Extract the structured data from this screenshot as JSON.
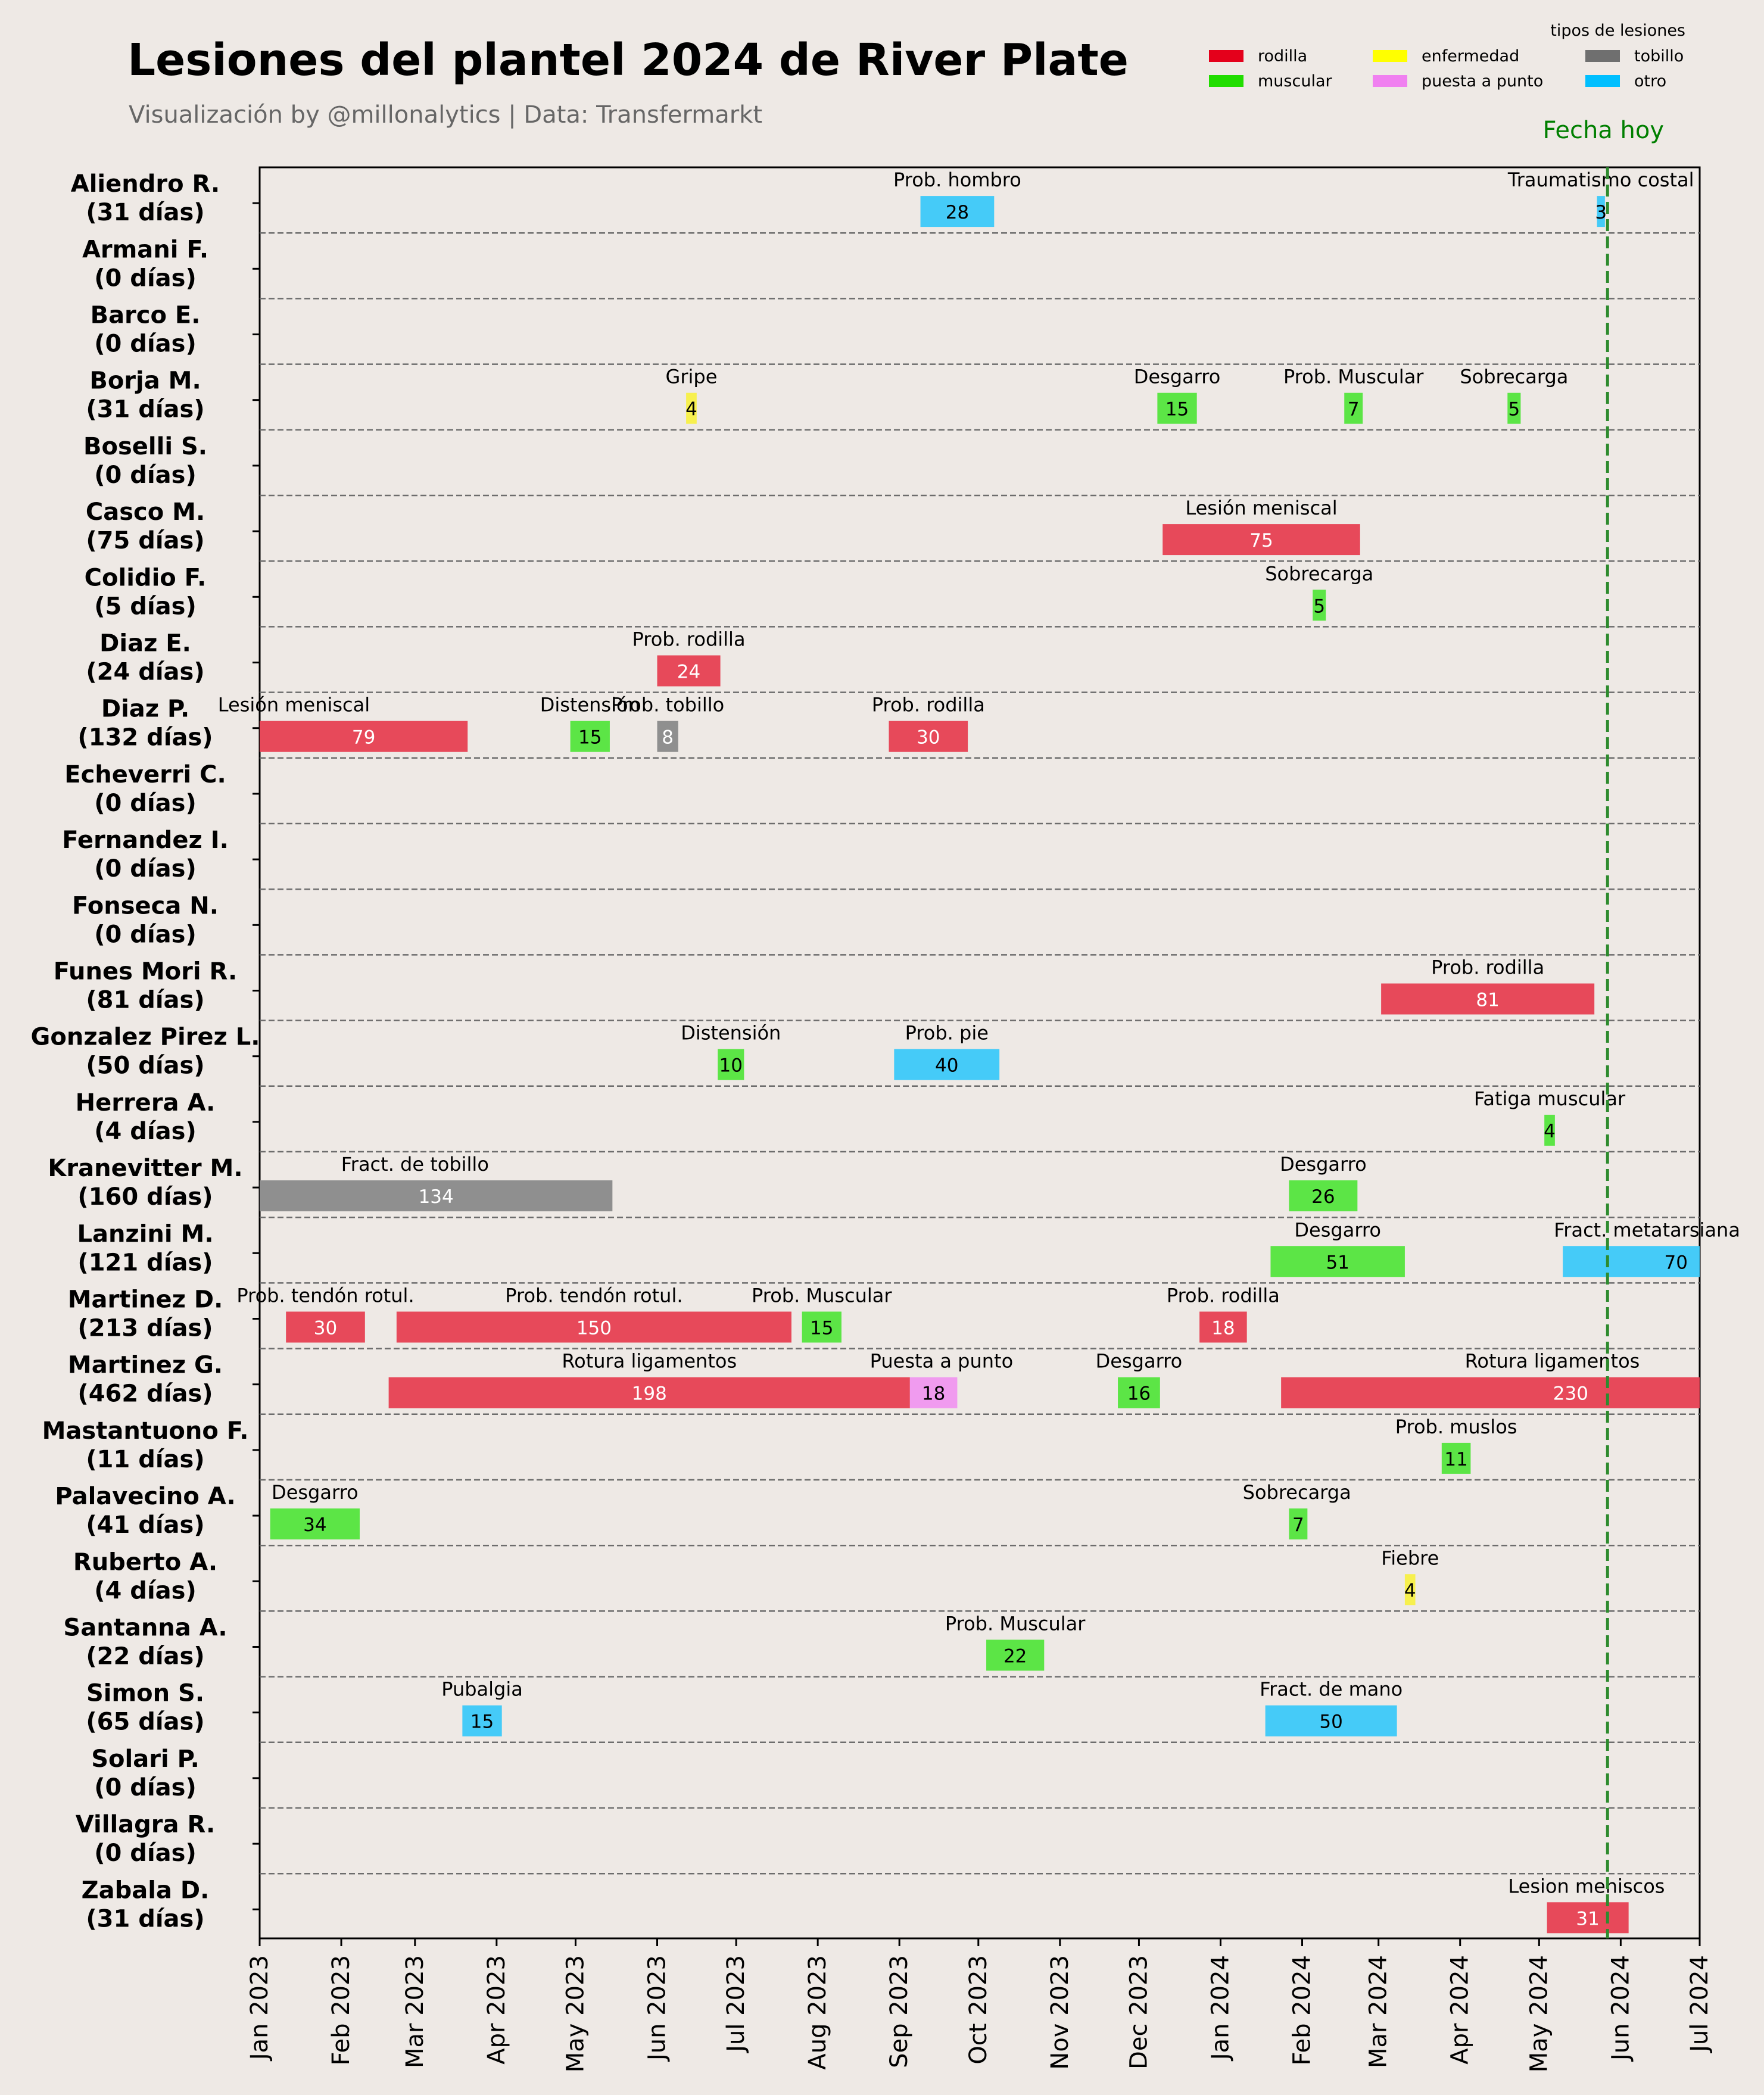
{
  "chart_data": {
    "type": "gantt",
    "title": "Lesiones del plantel 2024 de River Plate",
    "subtitle": "Visualización by @millonalytics | Data: Transfermarkt",
    "legend": {
      "title": "tipos de lesiones",
      "placement": "top-right",
      "items": [
        {
          "label": "rodilla",
          "color": "#E4001B"
        },
        {
          "label": "enfermedad",
          "color": "#FFFF00"
        },
        {
          "label": "tobillo",
          "color": "#6F6F6F"
        },
        {
          "label": "muscular",
          "color": "#21DD00"
        },
        {
          "label": "puesta a punto",
          "color": "#F080F0"
        },
        {
          "label": "otro",
          "color": "#00BFFF"
        }
      ]
    },
    "bar_colors": {
      "rodilla": "#E7495A",
      "enfermedad": "#F7F04E",
      "tobillo": "#8F8F8F",
      "muscular": "#5CE546",
      "puesta a punto": "#F09BEF",
      "otro": "#45CBF8"
    },
    "today_label": "Fecha hoy",
    "today_date": "2024-05-27",
    "xlim": [
      "2023-01-01",
      "2024-07-01"
    ],
    "x_ticks": [
      {
        "date": "2023-01-01",
        "label": "Jan 2023"
      },
      {
        "date": "2023-02-01",
        "label": "Feb 2023"
      },
      {
        "date": "2023-03-01",
        "label": "Mar 2023"
      },
      {
        "date": "2023-04-01",
        "label": "Apr 2023"
      },
      {
        "date": "2023-05-01",
        "label": "May 2023"
      },
      {
        "date": "2023-06-01",
        "label": "Jun 2023"
      },
      {
        "date": "2023-07-01",
        "label": "Jul 2023"
      },
      {
        "date": "2023-08-01",
        "label": "Aug 2023"
      },
      {
        "date": "2023-09-01",
        "label": "Sep 2023"
      },
      {
        "date": "2023-10-01",
        "label": "Oct 2023"
      },
      {
        "date": "2023-11-01",
        "label": "Nov 2023"
      },
      {
        "date": "2023-12-01",
        "label": "Dec 2023"
      },
      {
        "date": "2024-01-01",
        "label": "Jan 2024"
      },
      {
        "date": "2024-02-01",
        "label": "Feb 2024"
      },
      {
        "date": "2024-03-01",
        "label": "Mar 2024"
      },
      {
        "date": "2024-04-01",
        "label": "Apr 2024"
      },
      {
        "date": "2024-05-01",
        "label": "May 2024"
      },
      {
        "date": "2024-06-01",
        "label": "Jun 2024"
      },
      {
        "date": "2024-07-01",
        "label": "Jul 2024"
      }
    ],
    "players": [
      {
        "name": "Aliendro R.",
        "total": "(31 días)",
        "injuries": [
          {
            "start": "2023-09-09",
            "days": 28,
            "label": "Prob. hombro",
            "type": "otro"
          },
          {
            "start": "2024-05-23",
            "days": 3,
            "label": "Traumatismo costal",
            "type": "otro"
          }
        ]
      },
      {
        "name": "Armani F.",
        "total": "(0 días)",
        "injuries": []
      },
      {
        "name": "Barco E.",
        "total": "(0 días)",
        "injuries": []
      },
      {
        "name": "Borja M.",
        "total": "(31 días)",
        "injuries": [
          {
            "start": "2023-06-12",
            "days": 4,
            "label": "Gripe",
            "type": "enfermedad"
          },
          {
            "start": "2023-12-08",
            "days": 15,
            "label": "Desgarro",
            "type": "muscular"
          },
          {
            "start": "2024-02-17",
            "days": 7,
            "label": "Prob. Muscular",
            "type": "muscular"
          },
          {
            "start": "2024-04-19",
            "days": 5,
            "label": "Sobrecarga",
            "type": "muscular"
          }
        ]
      },
      {
        "name": "Boselli S.",
        "total": "(0 días)",
        "injuries": []
      },
      {
        "name": "Casco M.",
        "total": "(75 días)",
        "injuries": [
          {
            "start": "2023-12-10",
            "days": 75,
            "label": "Lesión meniscal",
            "type": "rodilla"
          }
        ]
      },
      {
        "name": "Colidio F.",
        "total": "(5 días)",
        "injuries": [
          {
            "start": "2024-02-05",
            "days": 5,
            "label": "Sobrecarga",
            "type": "muscular"
          }
        ]
      },
      {
        "name": "Diaz E.",
        "total": "(24 días)",
        "injuries": [
          {
            "start": "2023-06-01",
            "days": 24,
            "label": "Prob. rodilla",
            "type": "rodilla"
          }
        ]
      },
      {
        "name": "Diaz P.",
        "total": "(132 días)",
        "injuries": [
          {
            "start": "2023-01-01",
            "days": 79,
            "label": "Lesión meniscal",
            "type": "rodilla",
            "label_x_date": "2023-01-14"
          },
          {
            "start": "2023-04-29",
            "days": 15,
            "label": "Distensión",
            "type": "muscular"
          },
          {
            "start": "2023-06-01",
            "days": 8,
            "label": "Prob. tobillo",
            "type": "tobillo"
          },
          {
            "start": "2023-08-28",
            "days": 30,
            "label": "Prob. rodilla",
            "type": "rodilla"
          }
        ]
      },
      {
        "name": "Echeverri C.",
        "total": "(0 días)",
        "injuries": []
      },
      {
        "name": "Fernandez I.",
        "total": "(0 días)",
        "injuries": []
      },
      {
        "name": "Fonseca N.",
        "total": "(0 días)",
        "injuries": []
      },
      {
        "name": "Funes Mori R.",
        "total": "(81 días)",
        "injuries": [
          {
            "start": "2024-03-02",
            "days": 81,
            "label": "Prob. rodilla",
            "type": "rodilla"
          }
        ]
      },
      {
        "name": "Gonzalez Pirez L.",
        "total": "(50 días)",
        "injuries": [
          {
            "start": "2023-06-24",
            "days": 10,
            "label": "Distensión",
            "type": "muscular"
          },
          {
            "start": "2023-08-30",
            "days": 40,
            "label": "Prob. pie",
            "type": "otro"
          }
        ]
      },
      {
        "name": "Herrera A.",
        "total": "(4 días)",
        "injuries": [
          {
            "start": "2024-05-03",
            "days": 4,
            "label": "Fatiga muscular",
            "type": "muscular"
          }
        ]
      },
      {
        "name": "Kranevitter M.",
        "total": "(160 días)",
        "injuries": [
          {
            "start": "2023-01-01",
            "days": 134,
            "label": "Fract. de tobillo",
            "type": "tobillo",
            "label_x_date": "2023-03-01"
          },
          {
            "start": "2024-01-27",
            "days": 26,
            "label": "Desgarro",
            "type": "muscular"
          }
        ]
      },
      {
        "name": "Lanzini M.",
        "total": "(121 días)",
        "injuries": [
          {
            "start": "2024-01-20",
            "days": 51,
            "label": "Desgarro",
            "type": "muscular"
          },
          {
            "start": "2024-05-10",
            "days": 70,
            "label": "Fract. metatarsiana",
            "type": "otro",
            "label_x_date": "2024-06-11",
            "value_x_date": "2024-06-22"
          }
        ]
      },
      {
        "name": "Martinez D.",
        "total": "(213 días)",
        "injuries": [
          {
            "start": "2023-01-11",
            "days": 30,
            "label": "Prob. tendón rotul.",
            "type": "rodilla",
            "label_x_date": "2023-01-26"
          },
          {
            "start": "2023-02-22",
            "days": 150,
            "label": "Prob. tendón rotul.",
            "type": "rodilla"
          },
          {
            "start": "2023-07-26",
            "days": 15,
            "label": "Prob. Muscular",
            "type": "muscular"
          },
          {
            "start": "2023-12-24",
            "days": 18,
            "label": "Prob. rodilla",
            "type": "rodilla"
          }
        ]
      },
      {
        "name": "Martinez G.",
        "total": "(462 días)",
        "injuries": [
          {
            "start": "2023-02-19",
            "days": 198,
            "label": "Rotura ligamentos",
            "type": "rodilla"
          },
          {
            "start": "2023-09-05",
            "days": 18,
            "label": "Puesta a punto",
            "type": "puesta a punto",
            "label_x_date": "2023-09-17"
          },
          {
            "start": "2023-11-23",
            "days": 16,
            "label": "Desgarro",
            "type": "muscular"
          },
          {
            "start": "2024-01-24",
            "days": 230,
            "label": "Rotura ligamentos",
            "type": "rodilla",
            "label_x_date": "2024-05-06",
            "value_x_date": "2024-05-13"
          }
        ]
      },
      {
        "name": "Mastantuono F.",
        "total": "(11 días)",
        "injuries": [
          {
            "start": "2024-03-25",
            "days": 11,
            "label": "Prob. muslos",
            "type": "muscular"
          }
        ]
      },
      {
        "name": "Palavecino A.",
        "total": "(41 días)",
        "injuries": [
          {
            "start": "2023-01-05",
            "days": 34,
            "label": "Desgarro",
            "type": "muscular"
          },
          {
            "start": "2024-01-27",
            "days": 7,
            "label": "Sobrecarga",
            "type": "muscular",
            "label_x_date": "2024-01-30"
          }
        ]
      },
      {
        "name": "Ruberto A.",
        "total": "(4 días)",
        "injuries": [
          {
            "start": "2024-03-11",
            "days": 4,
            "label": "Fiebre",
            "type": "enfermedad"
          }
        ]
      },
      {
        "name": "Santanna A.",
        "total": "(22 días)",
        "injuries": [
          {
            "start": "2023-10-04",
            "days": 22,
            "label": "Prob. Muscular",
            "type": "muscular"
          }
        ]
      },
      {
        "name": "Simon S.",
        "total": "(65 días)",
        "injuries": [
          {
            "start": "2023-03-19",
            "days": 15,
            "label": "Pubalgia",
            "type": "otro"
          },
          {
            "start": "2024-01-18",
            "days": 50,
            "label": "Fract. de mano",
            "type": "otro"
          }
        ]
      },
      {
        "name": "Solari P.",
        "total": "(0 días)",
        "injuries": []
      },
      {
        "name": "Villagra R.",
        "total": "(0 días)",
        "injuries": []
      },
      {
        "name": "Zabala D.",
        "total": "(31 días)",
        "injuries": [
          {
            "start": "2024-05-04",
            "days": 31,
            "label": "Lesion meniscos",
            "type": "rodilla",
            "label_x_date": "2024-05-19"
          }
        ]
      }
    ]
  }
}
